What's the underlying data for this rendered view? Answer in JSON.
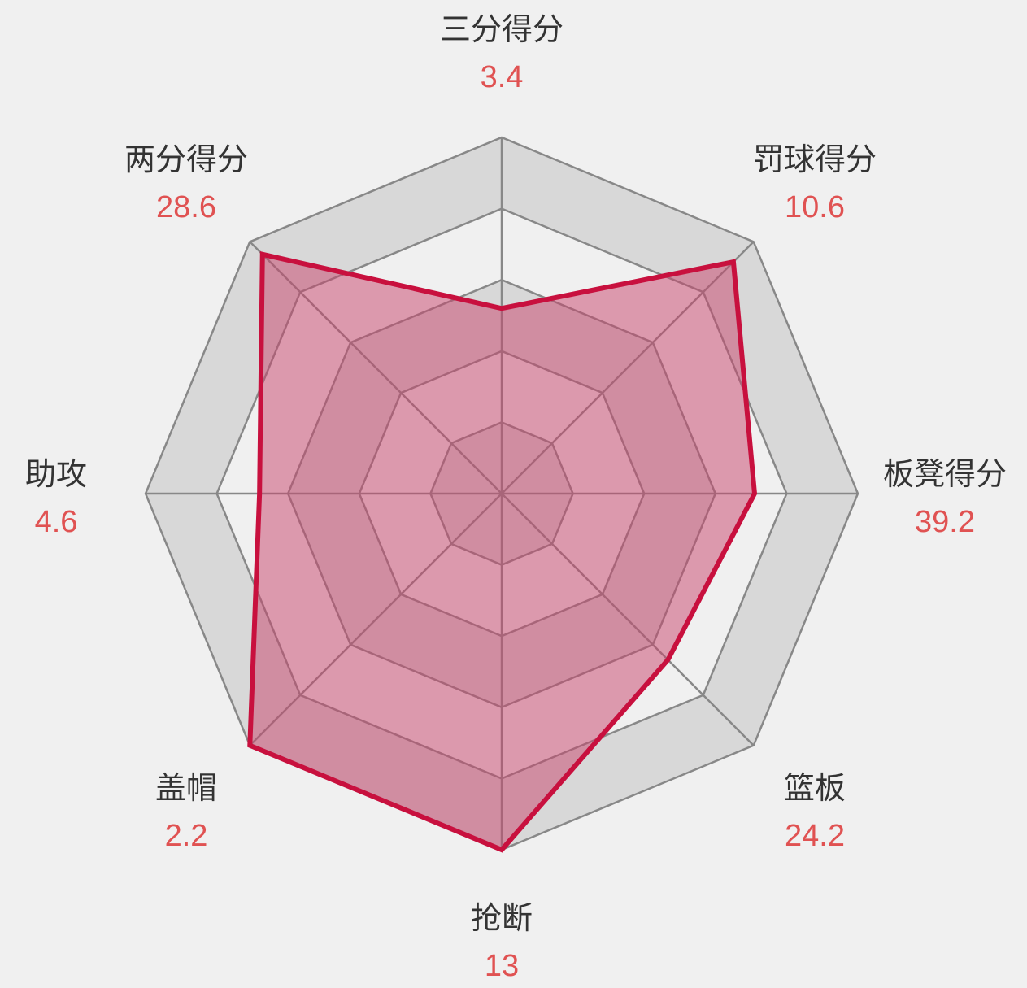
{
  "chart_data": {
    "type": "radar",
    "categories": [
      "三分得分",
      "罚球得分",
      "板凳得分",
      "篮板",
      "抢断",
      "盖帽",
      "助攻",
      "两分得分"
    ],
    "value_labels": [
      "3.4",
      "10.6",
      "39.2",
      "24.2",
      "13",
      "2.2",
      "4.6",
      "28.6"
    ],
    "normalized_values": [
      0.52,
      0.92,
      0.71,
      0.66,
      1.0,
      1.0,
      0.68,
      0.95
    ],
    "rings": 5,
    "grid": true,
    "legend": "none"
  },
  "colors": {
    "background": "#f0f0f0",
    "ring_fill": "#d8d8d8",
    "grid_line": "#888888",
    "series_fill": "#c8416a",
    "series_line": "#c8103e",
    "label": "#333333",
    "value": "#e05252"
  }
}
